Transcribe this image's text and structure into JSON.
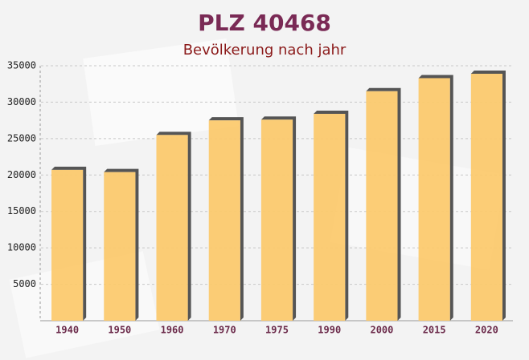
{
  "chart_data": {
    "type": "bar",
    "title": "PLZ 40468",
    "subtitle": "Bevölkerung nach jahr",
    "categories": [
      "1940",
      "1950",
      "1960",
      "1970",
      "1975",
      "1990",
      "2000",
      "2015",
      "2020"
    ],
    "values": [
      20700,
      20400,
      25500,
      27500,
      27600,
      28400,
      31500,
      33300,
      33900
    ],
    "color": "#fcc96a",
    "ylim": [
      0,
      35000
    ],
    "yticks": [
      5000,
      10000,
      15000,
      20000,
      25000,
      30000,
      35000
    ],
    "grid": true
  }
}
